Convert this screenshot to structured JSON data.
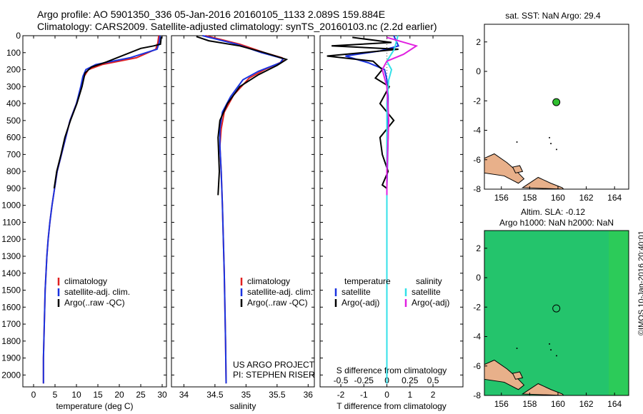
{
  "header": {
    "line1": "Argo profile: AO 5901350_336 05-Jan-2016 20160105_1133 2.089S 159.884E",
    "line2": "Climatology: CARS2009. Satellite-adjusted climatology: synTS_20160103.nc (2.2d earlier)"
  },
  "side_label": "©IMOS 10-Jan-2016 20:40:01",
  "colors": {
    "climatology": "#e02020",
    "satellite": "#1a33e0",
    "argo": "#000000",
    "sal_satellite": "#33e0e8",
    "sal_argo": "#e020e0",
    "land": "#e8b08a",
    "dot": "#2fbf2f",
    "sla_field": "#24c46c"
  },
  "chart_data": [
    {
      "type": "line",
      "name": "temperature-profile",
      "xlabel": "temperature (deg C)",
      "ylabel": "",
      "xlim": [
        -2.5,
        31
      ],
      "ylim": [
        2070,
        0
      ],
      "x_ticks": [
        0,
        5,
        10,
        15,
        20,
        25,
        30
      ],
      "y_ticks": [
        0,
        100,
        200,
        300,
        400,
        500,
        600,
        700,
        800,
        900,
        1000,
        1100,
        1200,
        1300,
        1400,
        1500,
        1600,
        1700,
        1800,
        1900,
        2000
      ],
      "legend": [
        "climatology",
        "satellite-adj. clim.",
        "Argo(..raw -QC)"
      ],
      "series": [
        {
          "name": "climatology",
          "x": [
            29.2,
            29.0,
            28.5,
            24.0,
            16.0,
            12.8,
            11.8,
            11.2,
            10.0,
            8.5,
            7.5,
            6.5,
            5.5,
            4.9,
            4.3,
            3.8,
            3.4,
            3.1,
            2.9,
            2.7,
            2.6,
            2.5,
            2.4,
            2.3,
            2.3
          ],
          "y": [
            0,
            40,
            80,
            130,
            170,
            200,
            240,
            300,
            400,
            500,
            600,
            700,
            800,
            900,
            1000,
            1100,
            1200,
            1300,
            1400,
            1500,
            1600,
            1700,
            1800,
            1900,
            2050
          ]
        },
        {
          "name": "satellite-adj. clim.",
          "x": [
            29.5,
            29.3,
            28.8,
            22.5,
            14.5,
            12.2,
            11.5,
            11.0,
            10.0,
            8.5,
            7.5,
            6.5,
            5.5,
            4.9,
            4.3,
            3.8,
            3.4,
            3.1,
            2.9,
            2.7,
            2.6,
            2.5,
            2.4,
            2.3,
            2.3
          ],
          "y": [
            0,
            40,
            80,
            130,
            170,
            200,
            240,
            300,
            400,
            500,
            600,
            700,
            800,
            900,
            1000,
            1100,
            1200,
            1300,
            1400,
            1500,
            1600,
            1700,
            1800,
            1900,
            2050
          ]
        },
        {
          "name": "Argo(..raw -QC)",
          "x": [
            29.8,
            29.6,
            28.0,
            25.0,
            17.0,
            13.5,
            12.0,
            11.3,
            10.1,
            8.6,
            7.3,
            6.4,
            5.4,
            4.8
          ],
          "y": [
            5,
            50,
            60,
            75,
            155,
            185,
            220,
            300,
            400,
            500,
            600,
            700,
            800,
            900
          ]
        }
      ]
    },
    {
      "type": "line",
      "name": "salinity-profile",
      "xlabel": "salinity",
      "ylabel": "",
      "xlim": [
        33.8,
        36.1
      ],
      "ylim": [
        2070,
        0
      ],
      "x_ticks": [
        34,
        34.5,
        35,
        35.5,
        36
      ],
      "legend": [
        "climatology",
        "satellite-adj. clim.",
        "Argo(..raw -QC)"
      ],
      "annotations": [
        "US ARGO PROJECT",
        "PI: STEPHEN RISER"
      ],
      "series": [
        {
          "name": "climatology",
          "x": [
            34.35,
            34.9,
            35.3,
            35.58,
            35.6,
            35.3,
            35.05,
            34.8,
            34.65,
            34.6,
            34.58,
            34.6,
            34.62,
            34.65,
            34.67,
            34.68
          ],
          "y": [
            0,
            50,
            100,
            130,
            150,
            200,
            250,
            350,
            450,
            550,
            650,
            800,
            1000,
            1400,
            1800,
            2050
          ]
        },
        {
          "name": "satellite-adj. clim.",
          "x": [
            34.3,
            34.85,
            35.25,
            35.6,
            35.55,
            35.2,
            34.95,
            34.75,
            34.62,
            34.58,
            34.58,
            34.6,
            34.62,
            34.65,
            34.67,
            34.68
          ],
          "y": [
            0,
            50,
            100,
            135,
            160,
            210,
            260,
            360,
            450,
            550,
            650,
            800,
            1000,
            1400,
            1800,
            2050
          ]
        },
        {
          "name": "Argo(..raw -QC)",
          "x": [
            34.2,
            34.4,
            34.9,
            35.3,
            35.65,
            35.5,
            35.2,
            34.9,
            34.7,
            34.58,
            34.55,
            34.56,
            34.57,
            34.55
          ],
          "y": [
            5,
            30,
            60,
            100,
            140,
            175,
            230,
            300,
            400,
            500,
            600,
            700,
            800,
            940
          ]
        }
      ]
    },
    {
      "type": "line",
      "name": "difference-from-climatology",
      "xlabel": "T difference from climatology",
      "x2label": "S difference from climatology",
      "xlim": [
        -2.9,
        3.3
      ],
      "x2lim": [
        -0.725,
        0.825
      ],
      "ylim": [
        2070,
        0
      ],
      "x_ticks": [
        -2,
        -1,
        0,
        1,
        2
      ],
      "x2_ticks": [
        -0.5,
        -0.25,
        0,
        0.25,
        0.5
      ],
      "legend_titles": [
        "temperature",
        "salinity"
      ],
      "legend": [
        "satellite",
        "Argo(-adj)",
        "satellite",
        "Argo(-adj)"
      ],
      "series": [
        {
          "name": "satellite",
          "variable": "temperature",
          "x": [
            0.3,
            0.5,
            -0.3,
            -1.8,
            -0.8,
            -0.1,
            0.0,
            0.05,
            0.05,
            0.0,
            0.0,
            0.0,
            0.0
          ],
          "y": [
            0,
            60,
            90,
            120,
            160,
            200,
            260,
            350,
            600,
            900,
            1200,
            1600,
            2050
          ]
        },
        {
          "name": "Argo(-adj)",
          "variable": "temperature",
          "x": [
            -1.5,
            0.2,
            -2.4,
            0.5,
            -2.6,
            -0.6,
            -0.2,
            -0.5,
            0.1,
            -0.3,
            0.3,
            -0.3,
            -0.2,
            0.05,
            -0.2,
            0.0,
            0.0
          ],
          "y": [
            10,
            40,
            60,
            80,
            120,
            150,
            200,
            250,
            300,
            400,
            500,
            600,
            700,
            800,
            880,
            900,
            940
          ]
        },
        {
          "name": "satellite",
          "variable": "salinity",
          "x": [
            0.12,
            0.08,
            0.0,
            0.05,
            0.02,
            0.0,
            0.0,
            0.0,
            0.0,
            0.0
          ],
          "y": [
            0,
            80,
            150,
            200,
            260,
            400,
            800,
            1200,
            1700,
            2050
          ]
        },
        {
          "name": "Argo(-adj)",
          "variable": "salinity",
          "x": [
            0.0,
            0.32,
            0.18,
            0.0,
            -0.05,
            0.0,
            0.02,
            0.0,
            0.0
          ],
          "y": [
            10,
            60,
            110,
            150,
            200,
            300,
            500,
            800,
            940
          ]
        }
      ]
    },
    {
      "type": "scatter",
      "name": "sst-map",
      "title": "sat. SST: NaN Argo: 29.4",
      "xlim": [
        154.8,
        165
      ],
      "ylim": [
        -8,
        3.2
      ],
      "x_ticks": [
        156,
        158,
        160,
        162,
        164
      ],
      "y_ticks": [
        2,
        0,
        -2,
        -4,
        -6,
        -8
      ],
      "points": [
        {
          "x": 159.884,
          "y": -2.089
        }
      ]
    },
    {
      "type": "heatmap",
      "name": "sla-map",
      "title": "Altim. SLA: -0.12",
      "subtitle": "Argo h1000: NaN h2000: NaN",
      "xlim": [
        154.8,
        165
      ],
      "ylim": [
        -8,
        3.2
      ],
      "x_ticks": [
        156,
        158,
        160,
        162,
        164
      ],
      "y_ticks": [
        2,
        0,
        -2,
        -4,
        -6,
        -8
      ],
      "points": [
        {
          "x": 159.884,
          "y": -2.089
        }
      ]
    }
  ]
}
